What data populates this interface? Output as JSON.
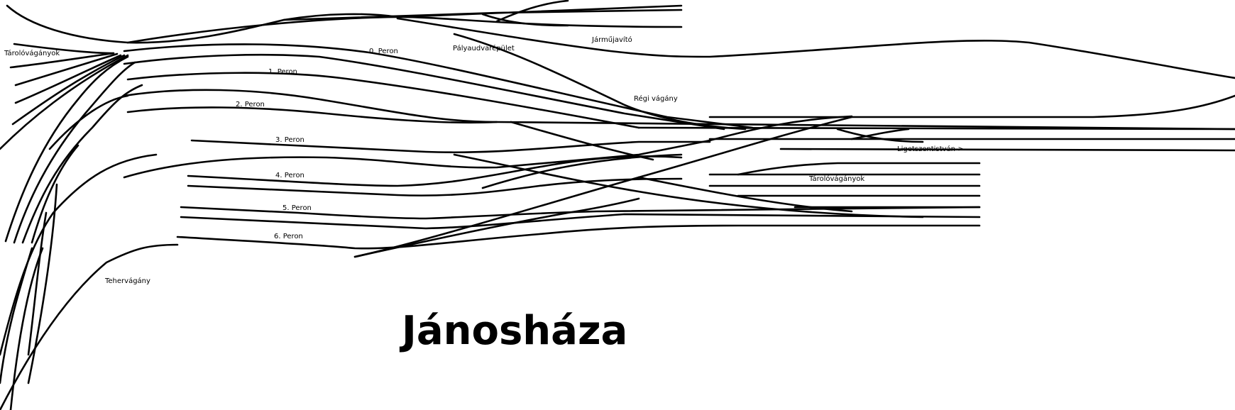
{
  "station_name": "Jánosháza",
  "labels": {
    "storage_tracks_west": "Tárolóvágányok",
    "platform_0": "0. Peron",
    "station_building": "Pályaudvarépület",
    "vehicle_workshop": "Járműjavító",
    "platform_1": "1. Peron",
    "platform_2": "2. Peron",
    "old_track": "Régi vágány",
    "platform_3": "3. Peron",
    "direction_east": "Ligetszentistván->",
    "platform_4": "4. Peron",
    "storage_tracks_east": "Tárolóvágányok",
    "platform_5": "5. Peron",
    "platform_6": "6. Peron",
    "freight_track": "Tehervágány"
  },
  "colors": {
    "track": "#000000",
    "background": "#ffffff"
  }
}
